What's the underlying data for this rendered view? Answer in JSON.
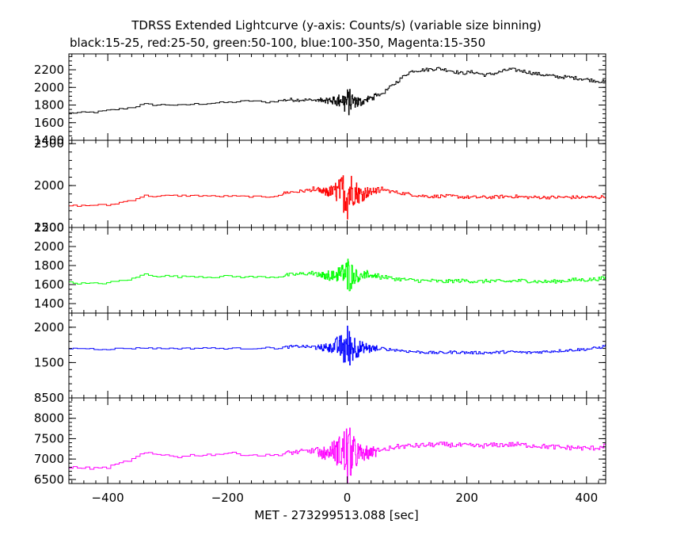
{
  "chart_data": {
    "type": "line",
    "title": "TDRSS Extended Lightcurve (y-axis: Counts/s) (variable size binning)",
    "subtitle": "black:15-25, red:25-50, green:50-100, blue:100-350, Magenta:15-350",
    "xlabel": "MET - 273299513.088 [sec]",
    "xlim": [
      -465,
      432
    ],
    "xticks": [
      -400,
      -200,
      0,
      200,
      400
    ],
    "grid": false,
    "panels": [
      {
        "name": "15-25",
        "color": "#000000",
        "ylim": [
          1400,
          2380
        ],
        "yticks": [
          1400,
          1600,
          1800,
          2000,
          2200
        ],
        "x": [
          -465,
          -440,
          -420,
          -400,
          -380,
          -360,
          -340,
          -320,
          -300,
          -280,
          -260,
          -240,
          -220,
          -200,
          -180,
          -160,
          -140,
          -120,
          -100,
          -80,
          -60,
          -40,
          -20,
          -10,
          0,
          10,
          20,
          40,
          60,
          80,
          100,
          110,
          130,
          150,
          170,
          190,
          210,
          230,
          250,
          270,
          290,
          310,
          330,
          350,
          370,
          390,
          410,
          432
        ],
        "y": [
          1710,
          1715,
          1720,
          1740,
          1755,
          1775,
          1810,
          1800,
          1805,
          1795,
          1810,
          1815,
          1825,
          1830,
          1840,
          1850,
          1830,
          1845,
          1860,
          1860,
          1855,
          1850,
          1850,
          1860,
          1830,
          1840,
          1830,
          1880,
          1940,
          2050,
          2160,
          2190,
          2200,
          2215,
          2195,
          2160,
          2175,
          2140,
          2165,
          2205,
          2190,
          2160,
          2140,
          2120,
          2115,
          2100,
          2080,
          2060
        ]
      },
      {
        "name": "25-50",
        "color": "#ff0000",
        "ylim": [
          1500,
          2540
        ],
        "yticks": [
          1500,
          2000,
          2500
        ],
        "x": [
          -465,
          -440,
          -420,
          -400,
          -380,
          -360,
          -340,
          -320,
          -300,
          -280,
          -260,
          -240,
          -220,
          -200,
          -180,
          -160,
          -140,
          -120,
          -100,
          -80,
          -60,
          -40,
          -20,
          -10,
          0,
          10,
          20,
          40,
          60,
          80,
          100,
          120,
          140,
          160,
          180,
          200,
          220,
          240,
          260,
          280,
          300,
          320,
          340,
          360,
          380,
          400,
          420,
          432
        ],
        "y": [
          1760,
          1760,
          1770,
          1765,
          1800,
          1830,
          1880,
          1870,
          1880,
          1880,
          1880,
          1880,
          1870,
          1875,
          1870,
          1870,
          1860,
          1880,
          1920,
          1930,
          1950,
          1920,
          1930,
          1940,
          1920,
          1940,
          1900,
          1930,
          1950,
          1920,
          1900,
          1880,
          1870,
          1875,
          1870,
          1860,
          1860,
          1860,
          1870,
          1870,
          1860,
          1860,
          1860,
          1860,
          1860,
          1860,
          1860,
          1870
        ]
      },
      {
        "name": "50-100",
        "color": "#00ff00",
        "ylim": [
          1300,
          2200
        ],
        "yticks": [
          1400,
          1600,
          1800,
          2000,
          2200
        ],
        "x": [
          -465,
          -440,
          -420,
          -400,
          -380,
          -360,
          -340,
          -320,
          -300,
          -280,
          -260,
          -240,
          -220,
          -200,
          -180,
          -160,
          -140,
          -120,
          -100,
          -80,
          -60,
          -40,
          -20,
          -10,
          0,
          10,
          20,
          40,
          60,
          80,
          100,
          120,
          140,
          160,
          180,
          200,
          220,
          240,
          260,
          280,
          300,
          320,
          340,
          360,
          380,
          400,
          420,
          432
        ],
        "y": [
          1620,
          1610,
          1610,
          1620,
          1640,
          1660,
          1710,
          1690,
          1690,
          1680,
          1690,
          1680,
          1680,
          1690,
          1680,
          1680,
          1680,
          1680,
          1700,
          1710,
          1720,
          1690,
          1700,
          1720,
          1700,
          1710,
          1690,
          1700,
          1680,
          1660,
          1650,
          1640,
          1640,
          1630,
          1640,
          1640,
          1630,
          1640,
          1630,
          1640,
          1640,
          1630,
          1630,
          1640,
          1650,
          1650,
          1660,
          1670
        ]
      },
      {
        "name": "100-350",
        "color": "#0000ff",
        "ylim": [
          1000,
          2200
        ],
        "yticks": [
          1500,
          2000
        ],
        "x": [
          -465,
          -440,
          -420,
          -400,
          -380,
          -360,
          -340,
          -320,
          -300,
          -280,
          -260,
          -240,
          -220,
          -200,
          -180,
          -160,
          -140,
          -120,
          -100,
          -80,
          -60,
          -40,
          -20,
          -10,
          0,
          10,
          20,
          40,
          60,
          80,
          100,
          120,
          140,
          160,
          180,
          200,
          220,
          240,
          260,
          280,
          300,
          320,
          340,
          360,
          380,
          400,
          420,
          432
        ],
        "y": [
          1700,
          1700,
          1690,
          1690,
          1700,
          1700,
          1710,
          1700,
          1700,
          1700,
          1700,
          1710,
          1700,
          1700,
          1700,
          1700,
          1710,
          1700,
          1720,
          1730,
          1720,
          1710,
          1730,
          1720,
          1700,
          1720,
          1700,
          1700,
          1690,
          1680,
          1660,
          1650,
          1640,
          1640,
          1650,
          1640,
          1640,
          1640,
          1650,
          1650,
          1640,
          1650,
          1660,
          1670,
          1680,
          1690,
          1710,
          1740
        ]
      },
      {
        "name": "15-350",
        "color": "#ff00ff",
        "ylim": [
          6400,
          8500
        ],
        "yticks": [
          6500,
          7000,
          7500,
          8000,
          8500
        ],
        "x": [
          -465,
          -440,
          -420,
          -400,
          -380,
          -360,
          -340,
          -320,
          -300,
          -280,
          -260,
          -240,
          -220,
          -200,
          -180,
          -160,
          -140,
          -120,
          -100,
          -80,
          -60,
          -40,
          -20,
          -10,
          0,
          10,
          20,
          40,
          60,
          80,
          100,
          120,
          140,
          160,
          180,
          200,
          220,
          240,
          260,
          280,
          300,
          320,
          340,
          360,
          380,
          400,
          420,
          432
        ],
        "y": [
          6800,
          6780,
          6770,
          6800,
          6900,
          7000,
          7150,
          7100,
          7100,
          7050,
          7100,
          7100,
          7120,
          7150,
          7120,
          7100,
          7090,
          7100,
          7150,
          7180,
          7200,
          7150,
          7200,
          7180,
          7100,
          7150,
          7100,
          7160,
          7220,
          7300,
          7320,
          7330,
          7350,
          7360,
          7340,
          7330,
          7320,
          7340,
          7350,
          7360,
          7340,
          7320,
          7300,
          7280,
          7280,
          7260,
          7280,
          7350
        ]
      }
    ]
  }
}
